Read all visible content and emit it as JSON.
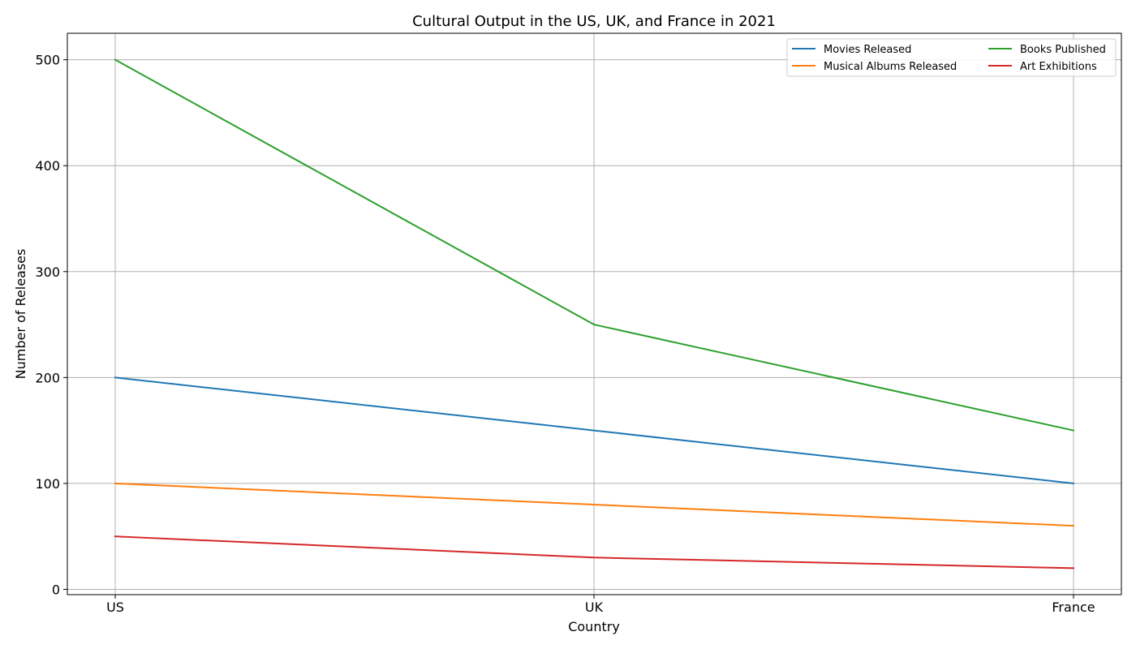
{
  "chart_data": {
    "type": "line",
    "title": "Cultural Output in the US, UK, and France in 2021",
    "xlabel": "Country",
    "ylabel": "Number of Releases",
    "categories": [
      "US",
      "UK",
      "France"
    ],
    "ylim": [
      -5,
      525
    ],
    "yticks": [
      0,
      100,
      200,
      300,
      400,
      500
    ],
    "grid": true,
    "legend_position": "top-right",
    "series": [
      {
        "name": "Movies Released",
        "color": "#1f77b4",
        "values": [
          200,
          150,
          100
        ]
      },
      {
        "name": "Musical Albums Released",
        "color": "#ff7f0e",
        "values": [
          100,
          80,
          60
        ]
      },
      {
        "name": "Books Published",
        "color": "#2ca02c",
        "values": [
          500,
          250,
          150
        ]
      },
      {
        "name": "Art Exhibitions",
        "color": "#d62728",
        "values": [
          50,
          30,
          20
        ]
      }
    ]
  }
}
